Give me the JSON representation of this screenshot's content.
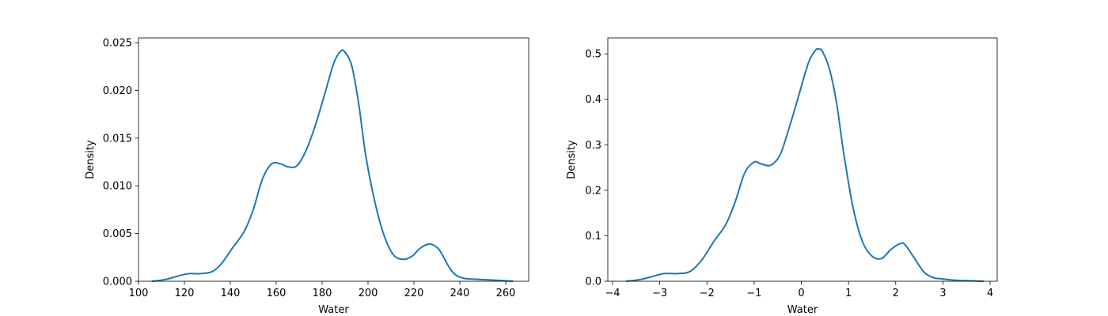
{
  "line_color": "#1f77b4",
  "chart_data": [
    {
      "type": "line",
      "title": "",
      "xlabel": "Water",
      "ylabel": "Density",
      "xlim": [
        100,
        270
      ],
      "ylim": [
        0,
        0.0255
      ],
      "x_ticks": [
        100,
        120,
        140,
        160,
        180,
        200,
        220,
        240,
        260
      ],
      "x_tick_labels": [
        "100",
        "120",
        "140",
        "160",
        "180",
        "200",
        "220",
        "240",
        "260"
      ],
      "y_ticks": [
        0.0,
        0.005,
        0.01,
        0.015,
        0.02,
        0.025
      ],
      "y_tick_labels": [
        "0.000",
        "0.005",
        "0.010",
        "0.015",
        "0.020",
        "0.025"
      ],
      "grid": false,
      "series": [
        {
          "x": [
            106,
            112,
            118,
            122,
            127,
            132,
            136,
            141,
            146,
            150,
            154,
            158,
            162,
            165,
            169,
            173,
            177,
            181,
            185,
            188,
            190,
            193,
            196,
            199,
            203,
            207,
            211,
            215,
            219,
            223,
            227,
            231,
            235,
            238,
            242,
            248,
            256,
            263
          ],
          "y": [
            0.0,
            0.0002,
            0.0006,
            0.0008,
            0.0008,
            0.001,
            0.0018,
            0.0035,
            0.0052,
            0.0075,
            0.0107,
            0.0123,
            0.0123,
            0.012,
            0.0121,
            0.0137,
            0.0163,
            0.0195,
            0.0228,
            0.0241,
            0.024,
            0.0225,
            0.0185,
            0.0132,
            0.0083,
            0.0048,
            0.0028,
            0.0023,
            0.0026,
            0.0035,
            0.0039,
            0.0033,
            0.0016,
            0.0007,
            0.0003,
            0.0002,
            0.0001,
            0.0
          ]
        }
      ]
    },
    {
      "type": "line",
      "title": "",
      "xlabel": "Water",
      "ylabel": "Density",
      "xlim": [
        -4.1,
        4.15
      ],
      "ylim": [
        0,
        0.535
      ],
      "x_ticks": [
        -4,
        -3,
        -2,
        -1,
        0,
        1,
        2,
        3,
        4
      ],
      "x_tick_labels": [
        "−4",
        "−3",
        "−2",
        "−1",
        "0",
        "1",
        "2",
        "3",
        "4"
      ],
      "y_ticks": [
        0.0,
        0.1,
        0.2,
        0.3,
        0.4,
        0.5
      ],
      "y_tick_labels": [
        "0.0",
        "0.1",
        "0.2",
        "0.3",
        "0.4",
        "0.5"
      ],
      "grid": false,
      "series": [
        {
          "x": [
            -3.7,
            -3.4,
            -3.1,
            -2.9,
            -2.6,
            -2.35,
            -2.1,
            -1.85,
            -1.6,
            -1.4,
            -1.2,
            -1.0,
            -0.85,
            -0.65,
            -0.45,
            -0.25,
            -0.05,
            0.15,
            0.3,
            0.38,
            0.45,
            0.6,
            0.75,
            0.9,
            1.1,
            1.3,
            1.5,
            1.7,
            1.9,
            2.1,
            2.2,
            2.4,
            2.6,
            2.8,
            3.0,
            3.3,
            3.6,
            3.85
          ],
          "y": [
            0.0,
            0.004,
            0.012,
            0.017,
            0.017,
            0.022,
            0.048,
            0.088,
            0.125,
            0.175,
            0.238,
            0.262,
            0.258,
            0.255,
            0.278,
            0.34,
            0.41,
            0.48,
            0.508,
            0.51,
            0.505,
            0.465,
            0.39,
            0.28,
            0.16,
            0.086,
            0.055,
            0.05,
            0.07,
            0.083,
            0.08,
            0.05,
            0.02,
            0.008,
            0.005,
            0.002,
            0.001,
            0.0
          ]
        }
      ]
    }
  ]
}
